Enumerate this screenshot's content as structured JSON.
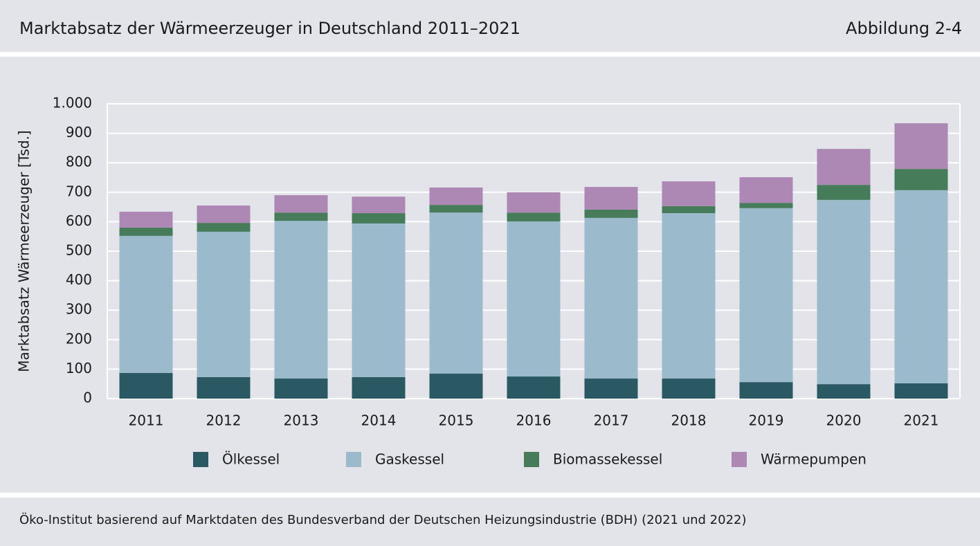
{
  "chart_data": {
    "type": "stacked_bar",
    "title": "Marktabsatz der Wärmeerzeuger in Deutschland 2011–2021",
    "figure_label": "Abbildung 2-4",
    "source": "Öko-Institut basierend auf Marktdaten des Bundesverband der Deutschen Heizungsindustrie (BDH) (2021 und 2022)",
    "ylabel": "Marktabsatz Wärmeerzeuger [Tsd.]",
    "categories": [
      "2011",
      "2012",
      "2013",
      "2014",
      "2015",
      "2016",
      "2017",
      "2018",
      "2019",
      "2020",
      "2021"
    ],
    "series": [
      {
        "name": "Ölkessel",
        "color": "#2a5963",
        "values": [
          87,
          73,
          68,
          73,
          85,
          75,
          68,
          68,
          56,
          49,
          52
        ]
      },
      {
        "name": "Gaskessel",
        "color": "#9bbacb",
        "values": [
          465,
          493,
          535,
          521,
          546,
          526,
          545,
          561,
          590,
          625,
          655
        ]
      },
      {
        "name": "Biomassekessel",
        "color": "#477c5a",
        "values": [
          28,
          30,
          28,
          35,
          26,
          30,
          28,
          24,
          18,
          51,
          72
        ]
      },
      {
        "name": "Wärmepumpen",
        "color": "#ae88b5",
        "values": [
          54,
          59,
          59,
          56,
          59,
          69,
          77,
          84,
          87,
          122,
          155
        ]
      }
    ],
    "ylim": [
      0,
      1000
    ],
    "yticks": [
      0,
      100,
      200,
      300,
      400,
      500,
      600,
      700,
      800,
      900,
      {
        "value": 1000,
        "label": "1.000"
      }
    ],
    "grid": true,
    "legend": "bottom"
  }
}
